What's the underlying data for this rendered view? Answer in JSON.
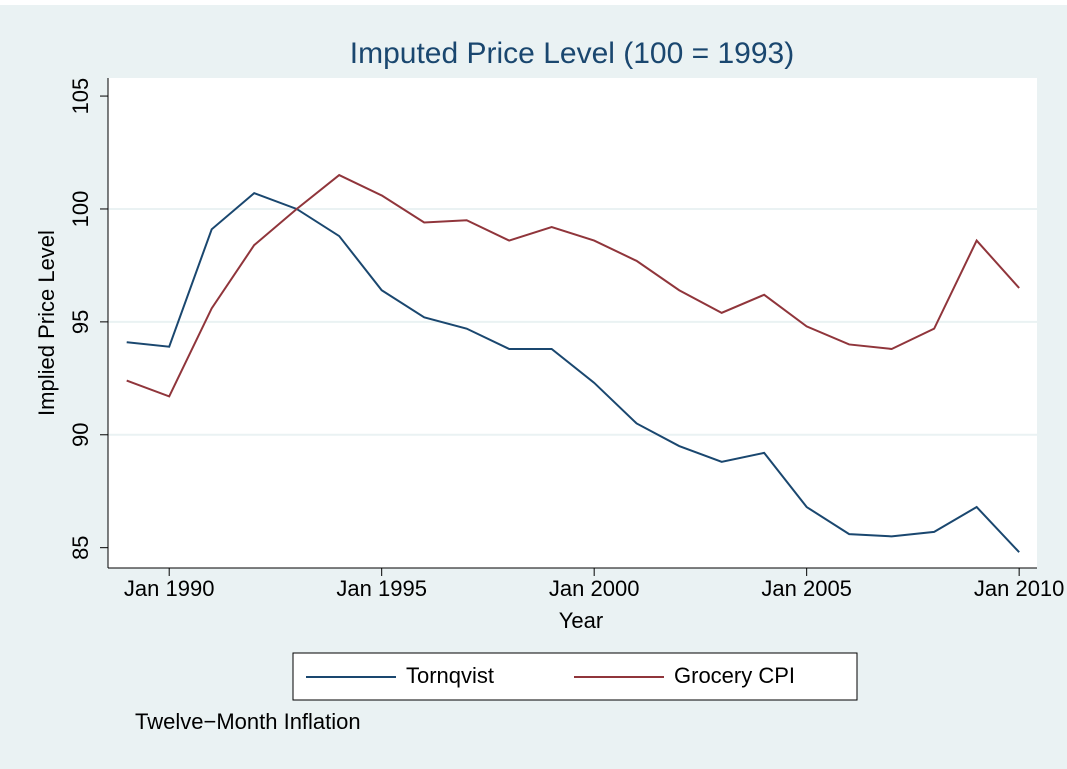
{
  "chart_data": {
    "type": "line",
    "title": "Imputed Price Level (100 = 1993)",
    "x_label": "Year",
    "y_label": "Implied Price Level",
    "note": "Twelve−Month Inflation",
    "x": [
      1989,
      1990,
      1991,
      1992,
      1993,
      1994,
      1995,
      1996,
      1997,
      1998,
      1999,
      2000,
      2001,
      2002,
      2003,
      2004,
      2005,
      2006,
      2007,
      2008,
      2009,
      2010
    ],
    "series": [
      {
        "name": "Tornqvist",
        "color": "#1a476f",
        "values": [
          94.1,
          93.9,
          99.1,
          100.7,
          100.0,
          98.8,
          96.4,
          95.2,
          94.7,
          93.8,
          93.8,
          92.3,
          90.5,
          89.5,
          88.8,
          89.2,
          86.8,
          85.6,
          85.5,
          85.7,
          86.8,
          84.8
        ]
      },
      {
        "name": "Grocery CPI",
        "color": "#90353b",
        "values": [
          92.4,
          91.7,
          95.6,
          98.4,
          100.0,
          101.5,
          100.6,
          99.4,
          99.5,
          98.6,
          99.2,
          98.6,
          97.7,
          96.4,
          95.4,
          96.2,
          94.8,
          94.0,
          93.8,
          94.7,
          98.6,
          96.5
        ]
      }
    ],
    "xlim": [
      1988.56,
      2010.42
    ],
    "xticks": [
      {
        "value": 1990,
        "label": "Jan 1990"
      },
      {
        "value": 1995,
        "label": "Jan 1995"
      },
      {
        "value": 2000,
        "label": "Jan 2000"
      },
      {
        "value": 2005,
        "label": "Jan 2005"
      },
      {
        "value": 2010,
        "label": "Jan 2010"
      }
    ],
    "ylim": [
      84.1,
      105.8
    ],
    "yticks": [
      85,
      90,
      95,
      100,
      105
    ],
    "grid": true,
    "legend": "bottom"
  }
}
